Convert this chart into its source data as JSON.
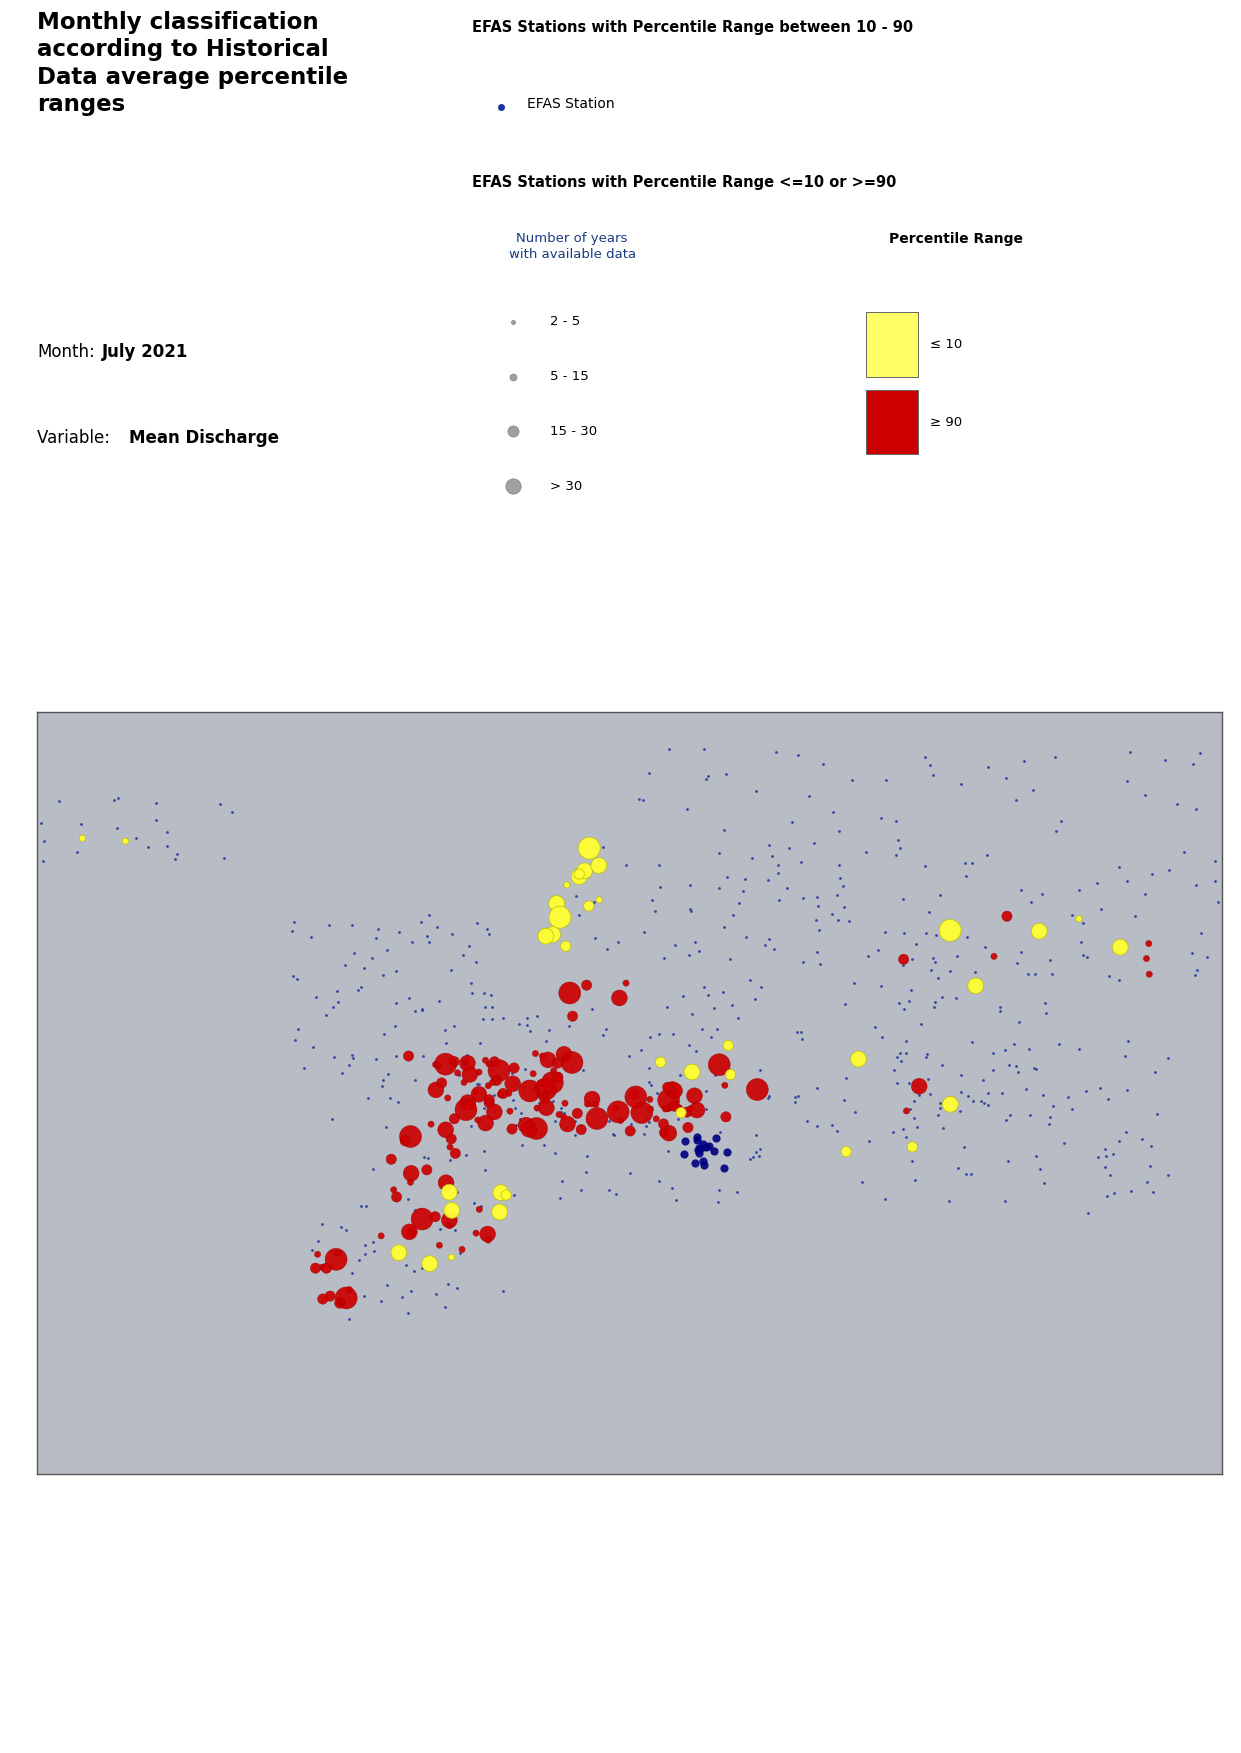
{
  "title_lines": [
    "Monthly classification",
    "according to Historical",
    "Data average percentile",
    "ranges"
  ],
  "month_label": "Month:",
  "month_value": "July 2021",
  "variable_label": "Variable:  ",
  "variable_value": "Mean Discharge",
  "legend1_title": "EFAS Stations with Percentile Range between 10 - 90",
  "legend1_dot_label": "EFAS Station",
  "legend1_dot_color": "#1a3399",
  "legend2_title": "EFAS Stations with Percentile Range <=10 or >=90",
  "legend2_col1_title": "Number of years\nwith available data",
  "legend2_col2_title": "Percentile Range",
  "size_labels": [
    "2 - 5",
    "5 - 15",
    "15 - 30",
    "> 30"
  ],
  "size_ms": [
    3,
    5,
    8,
    11
  ],
  "percentile_labels": [
    "≤ 10",
    "≥ 90"
  ],
  "percentile_colors": [
    "#ffff66",
    "#cc0000"
  ],
  "background_color": "#ffffff",
  "map_extent": [
    -25,
    45,
    27,
    72
  ],
  "ocean_color": "#c8ccd4",
  "land_color": "#b0b0aa",
  "blue_dot_color": "#1a3399",
  "blue_dot_size": 4,
  "red_color": "#cc0000",
  "yellow_color": "#ffff33",
  "navy_color": "#000080"
}
